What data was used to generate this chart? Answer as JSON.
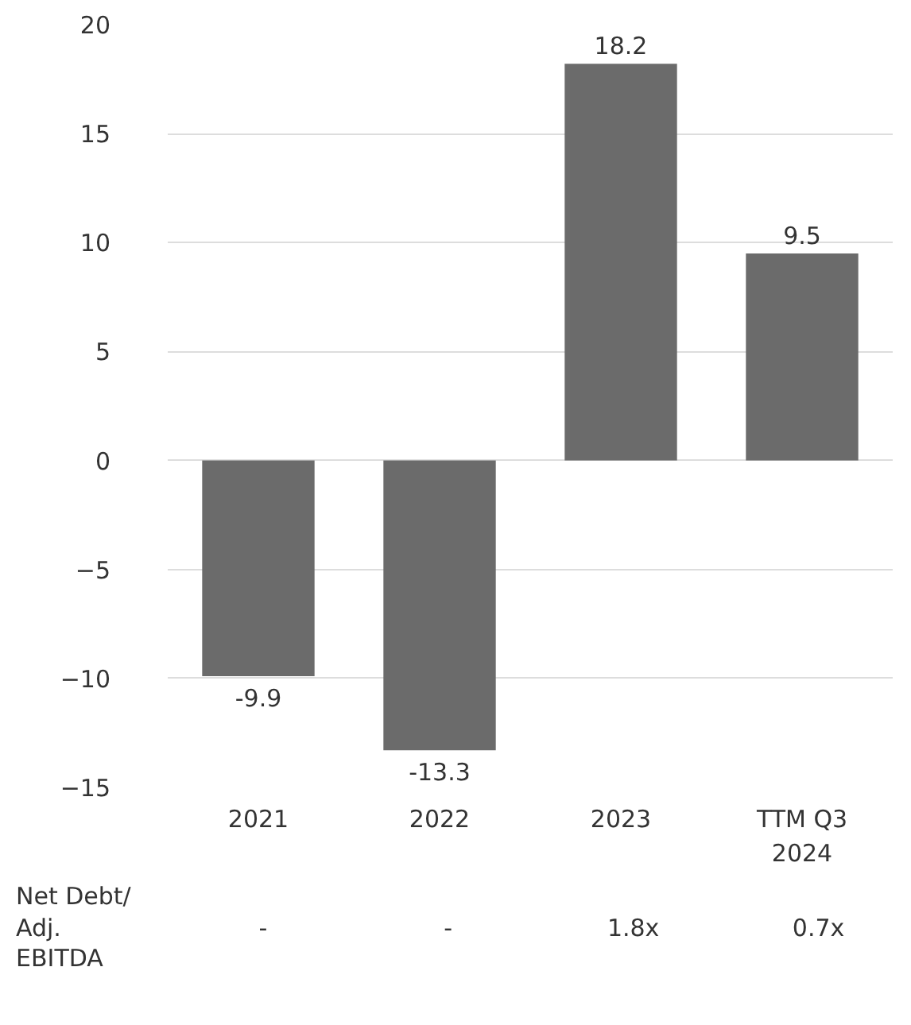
{
  "chart_data": {
    "type": "bar",
    "categories": [
      "2021",
      "2022",
      "2023",
      "TTM Q3\n2024"
    ],
    "values": [
      -9.9,
      -13.3,
      18.2,
      9.5
    ],
    "color": "#6b6b6b",
    "ylim": [
      -15,
      20
    ],
    "yticks": [
      -15,
      -10,
      -5,
      0,
      5,
      10,
      15,
      20
    ],
    "grid": "y",
    "data_labels": true,
    "annotations": [
      "Net Debt/\nAdj.\nEBITDA",
      "-",
      "-",
      "1.8x",
      "0.7x"
    ]
  }
}
